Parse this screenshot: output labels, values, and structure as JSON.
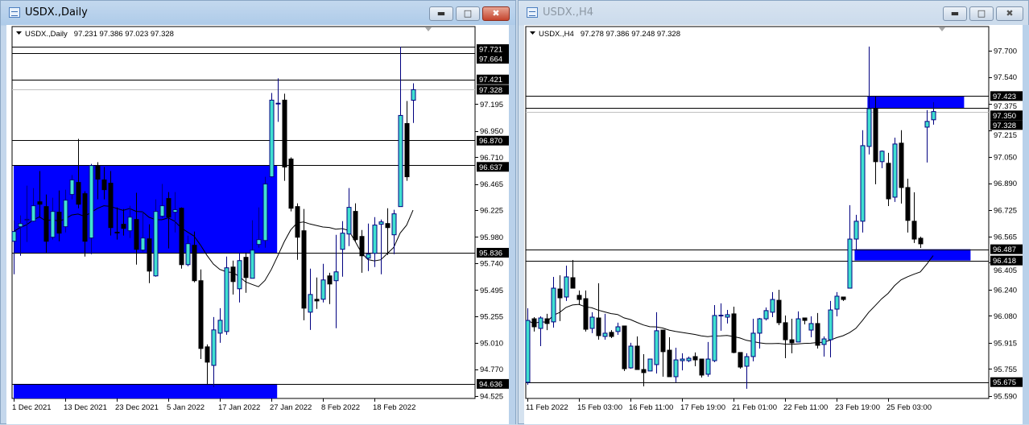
{
  "windows": [
    {
      "title": "USDX.,Daily",
      "active": true,
      "legend_symbol": "USDX.,Daily",
      "legend_ohlc": "97.231 97.386 97.023 97.328",
      "buttons": {
        "minimize": "minimize",
        "maximize": "restore",
        "close": "close"
      }
    },
    {
      "title": "USDX.,H4",
      "active": false,
      "legend_symbol": "USDX.,H4",
      "legend_ohlc": "97.278 97.386 97.248 97.328",
      "buttons": {
        "minimize": "minimize",
        "maximize": "restore",
        "close": "close"
      }
    }
  ],
  "icons": {
    "title": "chart-window-icon",
    "legend": "triangle-down-icon",
    "shift": "chart-shift-triangle-icon"
  },
  "colors": {
    "bull_body": "#40e0d0",
    "bull_outline": "#000080",
    "bear_body": "#000000",
    "zone": "#0000ff",
    "bid_line": "#c0c0c0",
    "level_line": "#000000"
  },
  "chart_data": [
    {
      "type": "candlestick",
      "symbol": "USDX.",
      "timeframe": "Daily",
      "ylim": [
        94.525,
        97.721
      ],
      "grid": false,
      "y_ticks": [
        "97.195",
        "96.950",
        "96.710",
        "96.465",
        "96.225",
        "95.980",
        "95.740",
        "95.495",
        "95.255",
        "95.010",
        "94.770",
        "94.525"
      ],
      "x_labels": [
        "1 Dec 2021",
        "13 Dec 2021",
        "23 Dec 2021",
        "5 Jan 2022",
        "17 Jan 2022",
        "27 Jan 2022",
        "8 Feb 2022",
        "18 Feb 2022"
      ],
      "x_label_bars": [
        0,
        8,
        16,
        24,
        32,
        40,
        48,
        56
      ],
      "levels": [
        {
          "price": 97.664,
          "label": "97.664",
          "type": "line"
        },
        {
          "price": 97.721,
          "label": "97.721",
          "type": "line"
        },
        {
          "price": 97.421,
          "label": "97.421",
          "type": "line"
        },
        {
          "price": 97.328,
          "label": "97.328",
          "type": "bid"
        },
        {
          "price": 96.87,
          "label": "96.870",
          "type": "line"
        },
        {
          "price": 96.637,
          "label": "96.637",
          "type": "line"
        },
        {
          "price": 95.836,
          "label": "95.836",
          "type": "line"
        },
        {
          "price": 94.636,
          "label": "94.636",
          "type": "line"
        }
      ],
      "zones": [
        {
          "start_bar": 0,
          "end_bar": 40.9,
          "top": 96.637,
          "bottom": 95.836
        },
        {
          "start_bar": 0,
          "end_bar": 40.9,
          "top": 94.636,
          "bottom": 94.5
        }
      ],
      "ma_period": 13,
      "candles": [
        [
          95.941,
          96.133,
          95.639,
          96.03
        ],
        [
          96.074,
          96.177,
          95.808,
          96.103
        ],
        [
          96.138,
          96.45,
          95.934,
          96.142
        ],
        [
          96.125,
          96.428,
          96.118,
          96.266
        ],
        [
          96.302,
          96.583,
          96.155,
          96.28
        ],
        [
          96.258,
          96.369,
          95.838,
          95.941
        ],
        [
          95.978,
          96.339,
          95.956,
          96.214
        ],
        [
          96.207,
          96.406,
          95.941,
          96.015
        ],
        [
          96.074,
          96.413,
          96.022,
          96.317
        ],
        [
          96.369,
          96.546,
          96.325,
          96.502
        ],
        [
          96.479,
          96.878,
          96.243,
          96.28
        ],
        [
          96.376,
          96.398,
          95.801,
          95.941
        ],
        [
          95.971,
          96.649,
          95.823,
          96.634
        ],
        [
          96.627,
          96.664,
          96.325,
          96.509
        ],
        [
          96.502,
          96.62,
          96.325,
          96.413
        ],
        [
          96.472,
          96.583,
          95.993,
          96.066
        ],
        [
          96.024,
          96.251,
          95.956,
          96.02
        ],
        [
          96.096,
          96.236,
          95.993,
          96.059
        ],
        [
          96.037,
          96.266,
          95.971,
          96.162
        ],
        [
          96.14,
          96.384,
          95.727,
          95.867
        ],
        [
          95.86,
          96.214,
          95.845,
          95.971
        ],
        [
          95.963,
          96.096,
          95.558,
          95.668
        ],
        [
          95.624,
          96.325,
          95.617,
          96.214
        ],
        [
          96.17,
          96.465,
          96.155,
          96.266
        ],
        [
          96.332,
          96.391,
          95.875,
          96.162
        ],
        [
          96.207,
          96.391,
          96.022,
          96.229
        ],
        [
          96.243,
          96.251,
          95.69,
          95.727
        ],
        [
          95.727,
          95.993,
          95.712,
          95.919
        ],
        [
          95.904,
          96.03,
          95.565,
          95.58
        ],
        [
          95.58,
          95.683,
          94.864,
          94.96
        ],
        [
          94.975,
          94.997,
          94.628,
          94.835
        ],
        [
          94.805,
          95.248,
          94.606,
          95.13
        ],
        [
          95.1,
          95.329,
          95.012,
          95.218
        ],
        [
          95.115,
          95.801,
          95.086,
          95.698
        ],
        [
          95.705,
          95.764,
          95.454,
          95.572
        ],
        [
          95.506,
          95.838,
          95.381,
          95.764
        ],
        [
          95.794,
          95.838,
          95.469,
          95.609
        ],
        [
          95.602,
          96.133,
          95.602,
          95.86
        ],
        [
          95.912,
          96.251,
          95.882,
          95.956
        ],
        [
          95.948,
          96.531,
          95.882,
          96.465
        ],
        [
          96.531,
          97.298,
          96.524,
          97.232
        ],
        [
          97.2,
          97.431,
          97.033,
          97.204
        ],
        [
          97.232,
          97.291,
          96.494,
          96.62
        ],
        [
          96.693,
          96.708,
          96.214,
          96.243
        ],
        [
          96.258,
          96.288,
          95.771,
          95.978
        ],
        [
          96.037,
          96.236,
          95.218,
          95.329
        ],
        [
          95.292,
          95.69,
          95.13,
          95.454
        ],
        [
          95.41,
          95.609,
          95.322,
          95.395
        ],
        [
          95.41,
          95.735,
          95.381,
          95.587
        ],
        [
          95.624,
          95.653,
          95.366,
          95.55
        ],
        [
          95.58,
          96.0,
          95.145,
          95.661
        ],
        [
          95.867,
          96.125,
          95.617,
          96.015
        ],
        [
          96.007,
          96.428,
          95.897,
          96.251
        ],
        [
          96.214,
          96.288,
          95.941,
          95.956
        ],
        [
          95.985,
          96.044,
          95.653,
          95.808
        ],
        [
          95.786,
          96.103,
          95.668,
          95.823
        ],
        [
          95.83,
          96.162,
          95.705,
          96.089
        ],
        [
          96.096,
          96.14,
          95.639,
          96.118
        ],
        [
          96.103,
          96.243,
          95.816,
          96.066
        ],
        [
          96.0,
          96.229,
          95.823,
          96.192
        ],
        [
          96.258,
          97.721,
          96.258,
          97.092
        ],
        [
          97.018,
          97.224,
          96.494,
          96.531
        ],
        [
          97.231,
          97.386,
          97.023,
          97.328
        ]
      ]
    },
    {
      "type": "candlestick",
      "symbol": "USDX.",
      "timeframe": "H4",
      "ylim": [
        95.59,
        97.7
      ],
      "grid": false,
      "y_ticks": [
        "97.700",
        "97.540",
        "97.375",
        "97.215",
        "97.050",
        "96.890",
        "96.725",
        "96.565",
        "96.405",
        "96.240",
        "96.080",
        "95.915",
        "95.755",
        "95.590"
      ],
      "x_labels": [
        "11 Feb 2022",
        "15 Feb 03:00",
        "16 Feb 11:00",
        "17 Feb 19:00",
        "21 Feb 01:00",
        "22 Feb 11:00",
        "23 Feb 19:00",
        "25 Feb 03:00"
      ],
      "x_label_bars": [
        0,
        8,
        16,
        24,
        32,
        40,
        48,
        56
      ],
      "levels": [
        {
          "price": 97.423,
          "label": "97.423",
          "type": "line"
        },
        {
          "price": 97.328,
          "label": "97.328",
          "type": "bid"
        },
        {
          "price": 97.35,
          "label": "97.350",
          "type": "line"
        },
        {
          "price": 96.487,
          "label": "96.487",
          "type": "line"
        },
        {
          "price": 96.418,
          "label": "96.418",
          "type": "line"
        },
        {
          "price": 95.675,
          "label": "95.675",
          "type": "line"
        }
      ],
      "zones": [
        {
          "start_bar": 52.8,
          "end_bar": 67.8,
          "top": 97.423,
          "bottom": 97.35
        },
        {
          "start_bar": 50.8,
          "end_bar": 68.8,
          "top": 96.487,
          "bottom": 96.418
        }
      ],
      "ma_period": 30,
      "candles": [
        [
          95.674,
          96.126,
          95.659,
          96.052
        ],
        [
          96.062,
          96.072,
          95.984,
          96.013
        ],
        [
          96.003,
          96.077,
          95.895,
          96.067
        ],
        [
          96.062,
          96.092,
          95.993,
          96.033
        ],
        [
          96.043,
          96.318,
          96.008,
          96.249
        ],
        [
          96.244,
          96.328,
          96.048,
          96.19
        ],
        [
          96.195,
          96.387,
          96.171,
          96.318
        ],
        [
          96.313,
          96.421,
          96.249,
          96.249
        ],
        [
          96.205,
          96.235,
          96.146,
          96.18
        ],
        [
          96.185,
          96.235,
          95.984,
          95.998
        ],
        [
          96.003,
          96.102,
          95.974,
          96.072
        ],
        [
          96.067,
          96.279,
          95.934,
          95.959
        ],
        [
          95.954,
          96.092,
          95.934,
          95.974
        ],
        [
          95.979,
          95.993,
          95.944,
          95.954
        ],
        [
          95.984,
          96.038,
          95.964,
          96.013
        ],
        [
          96.018,
          96.018,
          95.743,
          95.757
        ],
        [
          95.762,
          95.915,
          95.757,
          95.895
        ],
        [
          95.895,
          95.954,
          95.752,
          95.752
        ],
        [
          95.752,
          95.846,
          95.649,
          95.733
        ],
        [
          95.743,
          95.816,
          95.743,
          95.816
        ],
        [
          95.782,
          96.102,
          95.728,
          95.989
        ],
        [
          95.993,
          95.993,
          95.708,
          95.861
        ],
        [
          95.87,
          95.949,
          95.708,
          95.708
        ],
        [
          95.708,
          95.885,
          95.674,
          95.811
        ],
        [
          95.806,
          95.851,
          95.747,
          95.816
        ],
        [
          95.806,
          95.831,
          95.797,
          95.821
        ],
        [
          95.831,
          95.856,
          95.772,
          95.811
        ],
        [
          95.816,
          95.816,
          95.703,
          95.718
        ],
        [
          95.723,
          95.92,
          95.708,
          95.816
        ],
        [
          95.806,
          96.146,
          95.797,
          96.082
        ],
        [
          96.08,
          96.156,
          95.989,
          96.084
        ],
        [
          96.072,
          96.116,
          96.033,
          96.087
        ],
        [
          96.092,
          96.136,
          95.851,
          95.856
        ],
        [
          95.856,
          95.856,
          95.757,
          95.767
        ],
        [
          95.772,
          95.851,
          95.634,
          95.831
        ],
        [
          95.831,
          96.062,
          95.802,
          95.974
        ],
        [
          95.974,
          96.067,
          95.88,
          96.062
        ],
        [
          96.062,
          96.131,
          96.052,
          96.112
        ],
        [
          96.102,
          96.225,
          96.072,
          96.18
        ],
        [
          96.175,
          96.239,
          96.023,
          96.038
        ],
        [
          96.038,
          96.082,
          95.821,
          95.934
        ],
        [
          95.934,
          96.062,
          95.851,
          95.915
        ],
        [
          95.92,
          96.107,
          95.92,
          96.062
        ],
        [
          96.067,
          96.067,
          96.028,
          96.052
        ],
        [
          95.993,
          96.077,
          95.949,
          96.033
        ],
        [
          96.033,
          96.097,
          95.88,
          95.9
        ],
        [
          95.905,
          95.954,
          95.831,
          95.939
        ],
        [
          95.934,
          96.171,
          95.826,
          96.116
        ],
        [
          96.121,
          96.225,
          96.077,
          96.2
        ],
        [
          96.195,
          96.195,
          96.171,
          96.18
        ],
        [
          96.249,
          96.756,
          96.249,
          96.549
        ],
        [
          96.549,
          96.697,
          96.481,
          96.658
        ],
        [
          96.658,
          97.214,
          96.589,
          97.12
        ],
        [
          97.115,
          97.725,
          97.066,
          97.346
        ],
        [
          97.346,
          97.42,
          96.884,
          97.022
        ],
        [
          97.022,
          97.091,
          96.982,
          97.086
        ],
        [
          97.012,
          97.076,
          96.751,
          96.795
        ],
        [
          96.805,
          97.169,
          96.776,
          97.13
        ],
        [
          97.135,
          97.214,
          96.766,
          96.864
        ],
        [
          96.864,
          96.918,
          96.589,
          96.663
        ],
        [
          96.658,
          96.835,
          96.525,
          96.549
        ],
        [
          96.554,
          96.564,
          96.495,
          96.52
        ],
        [
          97.233,
          97.337,
          97.017,
          97.268
        ],
        [
          97.278,
          97.386,
          97.248,
          97.328
        ]
      ]
    }
  ]
}
